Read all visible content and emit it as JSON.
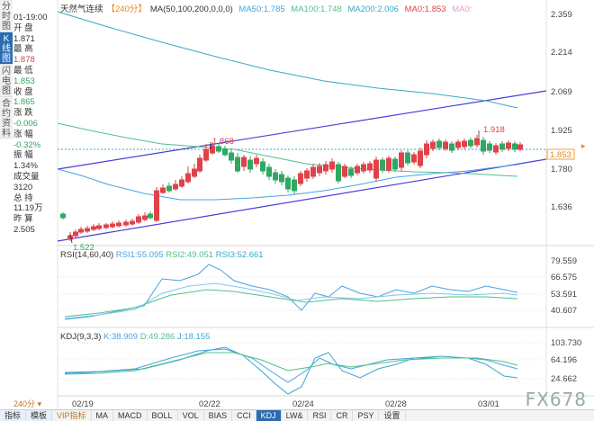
{
  "sidebar": {
    "tabs": [
      "分时图",
      "K线图",
      "闪电图",
      "合约资料"
    ],
    "active": 1
  },
  "info": {
    "time": "01-19:00",
    "open_label": "开 盘",
    "open": "1.871",
    "high_label": "最 高",
    "high": "1.878",
    "low_label": "最 低",
    "low": "1.853",
    "close_label": "收 盘",
    "close": "1.865",
    "change_label": "涨 跌",
    "change": "-0.006",
    "change_pct_label": "涨 幅",
    "change_pct": "-0.32%",
    "amplitude_label": "振 幅",
    "amplitude": "1.34%",
    "volume_label": "成交量",
    "volume": "3120",
    "oi_label": "总 持",
    "oi": "11.19万",
    "settle_label": "昨 算",
    "settle": "2.505",
    "period": "240分 ▾"
  },
  "legend": {
    "name": "天然气连续",
    "period": "【240分】",
    "ma_params": "MA(50,100,200,0,0,0)",
    "ma50": "MA50:1.785",
    "ma100": "MA100:1.748",
    "ma200": "MA200:2.006",
    "ma0a": "MA0:1.853",
    "ma0b": "MA0:"
  },
  "price_axis": [
    "2.359",
    "2.214",
    "2.069",
    "1.925",
    "1.780",
    "1.636"
  ],
  "last_price": "1.853",
  "annotations": {
    "high_1": "1.868",
    "high_2": "1.918",
    "low_1": "1.522"
  },
  "rsi": {
    "title": "RSI(14,60,40)",
    "rsi1": "RSI1:55.095",
    "rsi2": "RSI2:49.051",
    "rsi3": "RSI3:52.661",
    "axis": [
      "79.559",
      "66.575",
      "53.591",
      "40.607"
    ]
  },
  "kdj": {
    "title": "KDJ(9,3,3)",
    "k": "K:38.909",
    "d": "D:49.286",
    "j": "J:18.155",
    "axis": [
      "103.730",
      "64.196",
      "24.662"
    ]
  },
  "x_axis": [
    "02/19",
    "02/22",
    "02/24",
    "02/28",
    "03/01"
  ],
  "toolbar": [
    "指标",
    "模板",
    "VIP指标",
    "MA",
    "MACD",
    "BOLL",
    "VOL",
    "BIAS",
    "CCI",
    "KDJ",
    "LW&",
    "RSI",
    "CR",
    "PSY",
    "设置"
  ],
  "toolbar_active": "KDJ",
  "watermark": "FX678",
  "colors": {
    "up": "#e0424a",
    "down": "#2ea863",
    "ma50": "#4aa3df",
    "ma100": "#52c08a",
    "ma200": "#3aa8c8",
    "channel": "#4b3fd8",
    "rsi1": "#4aa3df",
    "rsi2": "#52c08a",
    "rsi3": "#7fc8ea"
  }
}
